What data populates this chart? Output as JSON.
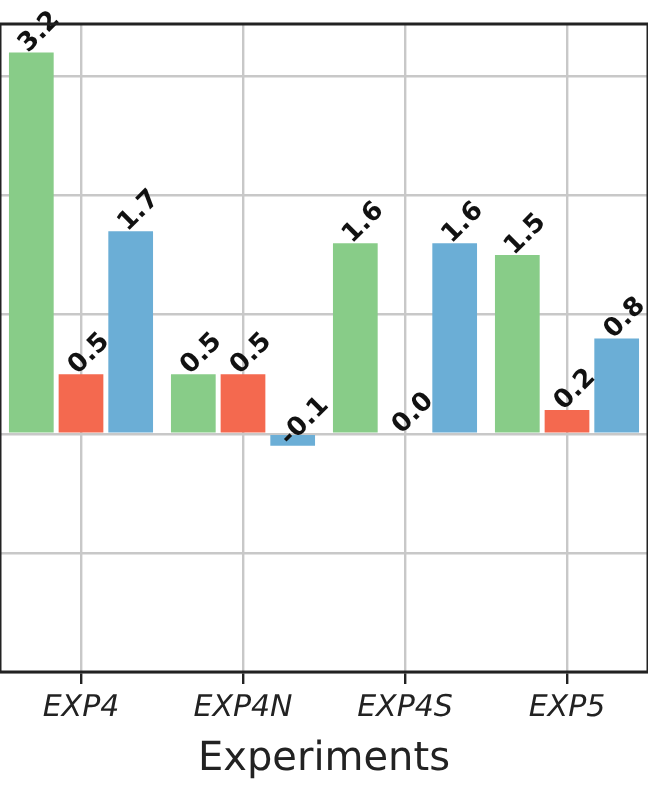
{
  "chart_data": {
    "type": "bar",
    "xlabel": "Experiments",
    "categories": [
      "EXP4",
      "EXP4N",
      "EXP4S",
      "EXP5"
    ],
    "series": [
      {
        "color": "#88cc88",
        "values": [
          3.2,
          0.5,
          1.6,
          1.5
        ],
        "value_labels": [
          "3.2",
          "0.5",
          "1.6",
          "1.5"
        ]
      },
      {
        "color": "#f4694f",
        "values": [
          0.5,
          0.5,
          0.0,
          0.2
        ],
        "value_labels": [
          "0.5",
          "0.5",
          "0.0",
          "0.2"
        ]
      },
      {
        "color": "#6baed6",
        "values": [
          1.7,
          -0.1,
          1.6,
          0.8
        ],
        "value_labels": [
          "1.7",
          "-0.1",
          "1.6",
          "0.8"
        ]
      }
    ],
    "ylim": [
      -2,
      3.44
    ],
    "yticks": [
      {
        "value": -2,
        "label": null
      },
      {
        "value": -1,
        "label": null
      },
      {
        "value": 0,
        "label": null
      },
      {
        "value": 1,
        "label": null
      },
      {
        "value": 2,
        "label": null
      },
      {
        "value": 3,
        "label": null
      }
    ],
    "tick_labels": "x",
    "grid": true,
    "legend": false
  }
}
